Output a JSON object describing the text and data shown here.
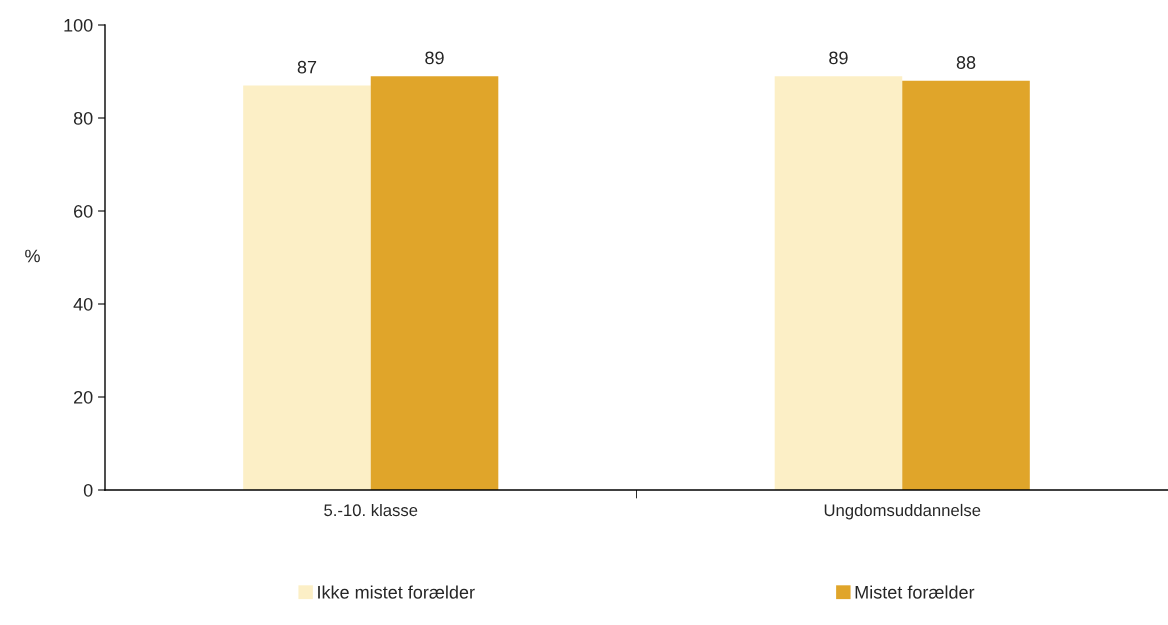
{
  "chart_data": {
    "type": "bar",
    "ylabel": "%",
    "categories": [
      "5.-10. klasse",
      "Ungdomsuddannelse"
    ],
    "series": [
      {
        "name": "Ikke mistet forælder",
        "color": "#fcefc6",
        "values": [
          87,
          89
        ]
      },
      {
        "name": "Mistet forælder",
        "color": "#e0a52a",
        "values": [
          89,
          88
        ]
      }
    ],
    "ylim": [
      0,
      100
    ],
    "yticks": [
      0,
      20,
      40,
      60,
      80,
      100
    ],
    "grid": false,
    "legend": "bottom",
    "data_labels": true
  }
}
